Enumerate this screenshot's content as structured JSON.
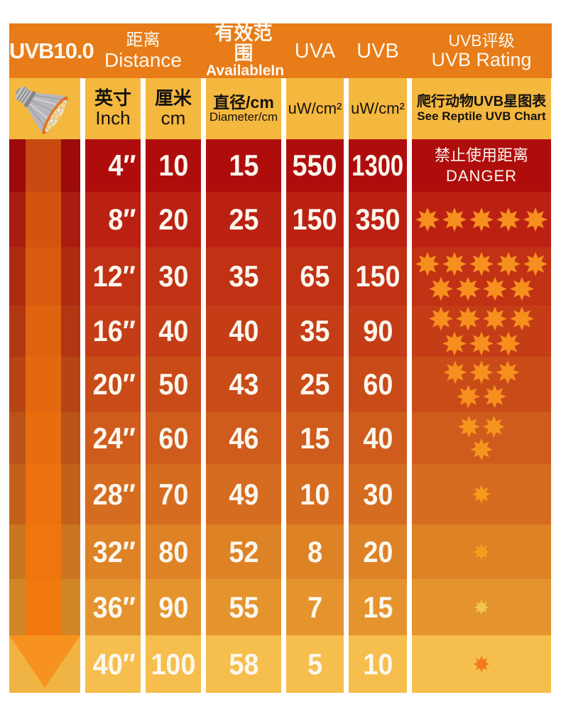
{
  "title": "UVB10.0",
  "header": {
    "distance_zh": "距离",
    "distance_en": "Distance",
    "available_zh": "有效范围",
    "available_en": "AvailableIn",
    "uva": "UVA",
    "uvb": "UVB",
    "rating_zh": "UVB评级",
    "rating_en": "UVB Rating"
  },
  "subheader": {
    "inch_zh": "英寸",
    "inch_en": "Inch",
    "cm_zh": "厘米",
    "cm_en": "cm",
    "diameter_zh": "直径/cm",
    "diameter_en": "Diameter/cm",
    "uva_unit": "uW/cm²",
    "uvb_unit": "uW/cm²",
    "rating_zh": "爬行动物UVB星图表",
    "rating_en": "See Reptile UVB Chart"
  },
  "colors": {
    "header_bg": "#E87C18",
    "subheader_bg": "#F5B83E",
    "arrowhead": "#F6921D",
    "text_light": "#FCF7EE",
    "text_dark": "#151310"
  },
  "rows": [
    {
      "inch": "4″",
      "cm": "10",
      "diameter": "15",
      "uva": "550",
      "uvb": "1300",
      "bg": "#AF0D0C",
      "arrow_bg": "#9C0B0A",
      "shaft": "#C84A10",
      "danger": {
        "zh": "禁止使用距离",
        "en": "DANGER"
      }
    },
    {
      "inch": "8″",
      "cm": "20",
      "diameter": "25",
      "uva": "150",
      "uvb": "350",
      "bg": "#BB2113",
      "arrow_bg": "#A91D10",
      "shaft": "#D3540F",
      "stars": [
        5
      ],
      "star_size": 34,
      "star_color": "#F68F1E"
    },
    {
      "inch": "12″",
      "cm": "30",
      "diameter": "35",
      "uva": "65",
      "uvb": "150",
      "bg": "#C13114",
      "arrow_bg": "#AE2B12",
      "shaft": "#D95B10",
      "stars": [
        5,
        4
      ],
      "star_size": 34,
      "star_color": "#F68F1E"
    },
    {
      "inch": "16″",
      "cm": "40",
      "diameter": "40",
      "uva": "35",
      "uvb": "90",
      "bg": "#C43D16",
      "arrow_bg": "#B13713",
      "shaft": "#DF630F",
      "stars": [
        4,
        3
      ],
      "star_size": 34,
      "star_color": "#F68F1E"
    },
    {
      "inch": "20″",
      "cm": "50",
      "diameter": "43",
      "uva": "25",
      "uvb": "60",
      "bg": "#C94C18",
      "arrow_bg": "#B64415",
      "shaft": "#E3680F",
      "stars": [
        3,
        2
      ],
      "star_size": 33,
      "star_color": "#F68F1E"
    },
    {
      "inch": "24″",
      "cm": "60",
      "diameter": "46",
      "uva": "15",
      "uvb": "40",
      "bg": "#CF5C1C",
      "arrow_bg": "#BB5318",
      "shaft": "#E86D0F",
      "stars": [
        2,
        1
      ],
      "star_size": 31,
      "star_color": "#F6951E"
    },
    {
      "inch": "28″",
      "cm": "70",
      "diameter": "49",
      "uva": "10",
      "uvb": "30",
      "bg": "#D66C1F",
      "arrow_bg": "#C2611B",
      "shaft": "#EC710F",
      "stars": [
        1
      ],
      "star_size": 26,
      "star_color": "#F79B1D"
    },
    {
      "inch": "32″",
      "cm": "80",
      "diameter": "52",
      "uva": "8",
      "uvb": "20",
      "bg": "#DE8226",
      "arrow_bg": "#CA7621",
      "shaft": "#EF750F",
      "stars": [
        1
      ],
      "star_size": 24,
      "star_color": "#F79B1D"
    },
    {
      "inch": "36″",
      "cm": "90",
      "diameter": "55",
      "uva": "7",
      "uvb": "15",
      "bg": "#E5942D",
      "arrow_bg": "#D18727",
      "shaft": "#F1790F",
      "stars": [
        1
      ],
      "star_size": 21,
      "star_color": "#F2C64B"
    },
    {
      "inch": "40″",
      "cm": "100",
      "diameter": "58",
      "uva": "5",
      "uvb": "10",
      "bg": "#F6BE4D",
      "arrow_bg": "#EFB443",
      "arrowhead": "#F6921D",
      "stars": [
        1
      ],
      "star_size": 23,
      "star_color": "#F4791B"
    }
  ],
  "chart_data": {
    "type": "table",
    "title": "UVB10.0 — Distance vs UV output and reptile UVB rating",
    "columns": [
      "Distance Inch",
      "Distance cm",
      "Available Diameter/cm",
      "UVA uW/cm²",
      "UVB uW/cm²",
      "UVB Rating (star count)"
    ],
    "rows": [
      [
        "4″",
        10,
        15,
        550,
        1300,
        "DANGER 禁止使用距离"
      ],
      [
        "8″",
        20,
        25,
        150,
        350,
        5
      ],
      [
        "12″",
        30,
        35,
        65,
        150,
        9
      ],
      [
        "16″",
        40,
        40,
        35,
        90,
        7
      ],
      [
        "20″",
        50,
        43,
        25,
        60,
        5
      ],
      [
        "24″",
        60,
        46,
        15,
        40,
        3
      ],
      [
        "28″",
        70,
        49,
        10,
        30,
        1
      ],
      [
        "32″",
        80,
        52,
        8,
        20,
        1
      ],
      [
        "36″",
        90,
        55,
        7,
        15,
        1
      ],
      [
        "40″",
        100,
        58,
        5,
        10,
        1
      ]
    ],
    "legend_position": "none",
    "grid": "white column dividers, red-to-yellow row gradient, downward arrow marks increasing distance"
  }
}
